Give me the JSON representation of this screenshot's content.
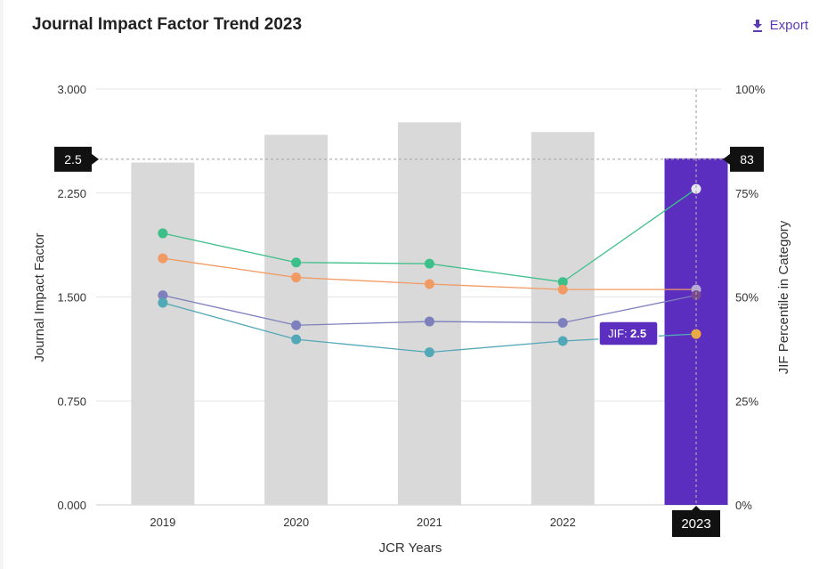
{
  "header": {
    "title": "Journal Impact Factor Trend 2023",
    "export_label": "Export",
    "export_icon": "download-icon"
  },
  "chart_data": {
    "type": "bar",
    "categories": [
      "2019",
      "2020",
      "2021",
      "2022",
      "2023"
    ],
    "xlabel": "JCR Years",
    "ylabel": "Journal Impact Factor",
    "ylabel_right": "JIF Percentile in Category",
    "ylim": [
      0,
      3
    ],
    "ylim_right": [
      0,
      100
    ],
    "yticks": [
      "0.000",
      "0.750",
      "1.500",
      "2.250",
      "3.000"
    ],
    "yticks_right": [
      "0%",
      "25%",
      "50%",
      "75%",
      "100%"
    ],
    "bars": {
      "values": [
        2.47,
        2.67,
        2.76,
        2.69,
        2.5
      ],
      "color": "#d9d9d9",
      "highlight_color": "#5c2ebf",
      "highlight_index": 4
    },
    "series": [
      {
        "values": [
          65.3,
          58.3,
          58.0,
          53.6,
          76.0
        ],
        "color": "#3dbf8a"
      },
      {
        "values": [
          59.3,
          54.7,
          53.1,
          51.8,
          51.8
        ],
        "color": "#f29a63"
      },
      {
        "values": [
          50.4,
          43.2,
          44.1,
          43.8,
          50.4
        ],
        "color": "#7e80bd"
      },
      {
        "values": [
          48.6,
          39.8,
          36.7,
          39.4,
          41.1
        ],
        "color": "#53a8b8"
      }
    ],
    "highlight_year": "2023",
    "jif_marker": "2.5",
    "percentile_marker": "83",
    "tooltip": {
      "label": "JIF:",
      "value": "2.5"
    },
    "colors": {
      "purple": "#5c2ebf",
      "tooltip_border": "#5c2ebf",
      "highlight_dot_white": "#e6e6ee",
      "highlight_dot_orange": "#f2a93b"
    }
  }
}
